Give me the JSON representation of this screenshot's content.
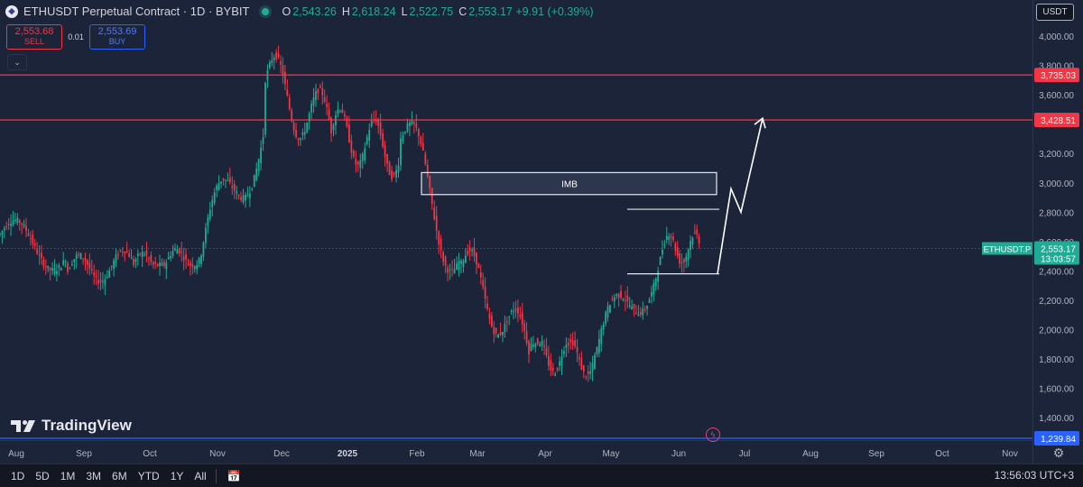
{
  "header": {
    "symbol_icon": "ethereum-icon",
    "title": "ETHUSDT Perpetual Contract · 1D · BYBIT",
    "ohlc": [
      {
        "label": "O",
        "value": "2,543.26"
      },
      {
        "label": "H",
        "value": "2,618.24"
      },
      {
        "label": "L",
        "value": "2,522.75"
      },
      {
        "label": "C",
        "value": "2,553.17 +9.91 (+0.39%)"
      }
    ]
  },
  "trade": {
    "sell_price": "2,553.68",
    "sell_label": "SELL",
    "qty": "0.01",
    "buy_price": "2,553.69",
    "buy_label": "BUY"
  },
  "currency": "USDT",
  "logo_text": "TradingView",
  "colors": {
    "up": "#22ab94",
    "down": "#f23645",
    "level": "#f23645",
    "bg": "#1b2439",
    "blue_line": "#2962ff"
  },
  "bottom": {
    "timeframes": [
      "1D",
      "5D",
      "1M",
      "3M",
      "6M",
      "YTD",
      "1Y",
      "All"
    ],
    "clock": "13:56:03 UTC+3"
  },
  "chart_data": {
    "type": "candlestick",
    "y_ticks": [
      4000,
      3800,
      3600,
      3200,
      3000,
      2800,
      2600,
      2400,
      2200,
      2000,
      1800,
      1600,
      1400
    ],
    "y_tick_labels": [
      "4,000.00",
      "3,800.00",
      "3,600.00",
      "3,200.00",
      "3,000.00",
      "2,800.00",
      "2,600.00",
      "2,400.00",
      "2,200.00",
      "2,000.00",
      "1,800.00",
      "1,600.00",
      "1,400.00"
    ],
    "x_labels": [
      "Aug",
      "Sep",
      "Oct",
      "Nov",
      "Dec",
      "2025",
      "Feb",
      "Mar",
      "Apr",
      "May",
      "Jun",
      "Jul",
      "Aug",
      "Sep",
      "Oct",
      "Nov"
    ],
    "price_levels": [
      {
        "value": 3735.03,
        "label": "3,735.03"
      },
      {
        "value": 3428.51,
        "label": "3,428.51"
      },
      {
        "value": 1239.84,
        "label": "1,239.84"
      }
    ],
    "current_price": {
      "symbol": "ETHUSDT.P",
      "value": 2553.17,
      "label": "2,553.17",
      "countdown": "13:03:57"
    },
    "imb_box": {
      "label": "IMB",
      "top": 3070,
      "bottom": 2920
    },
    "range": {
      "top": 2820,
      "bottom": 2380
    },
    "projection": [
      2380,
      2960,
      2800,
      3440
    ],
    "candles_monthly_path": [
      [
        "Aug",
        2650,
        2500,
        2800,
        2200
      ],
      [
        "Sep",
        2400,
        2450,
        2700,
        2250
      ],
      [
        "Oct",
        2450,
        2500,
        2700,
        2400
      ],
      [
        "Nov",
        2520,
        3400,
        3500,
        2400
      ],
      [
        "Dec",
        3700,
        3350,
        4100,
        3100
      ],
      [
        "2025",
        3350,
        3200,
        3750,
        2950
      ],
      [
        "Feb",
        3300,
        2500,
        3450,
        2200
      ],
      [
        "Mar",
        2450,
        1850,
        2600,
        1800
      ],
      [
        "Apr",
        1850,
        1800,
        1950,
        1400
      ],
      [
        "May",
        1800,
        2550,
        2750,
        1780
      ],
      [
        "Jun",
        2550,
        2553,
        2880,
        2420
      ]
    ]
  }
}
